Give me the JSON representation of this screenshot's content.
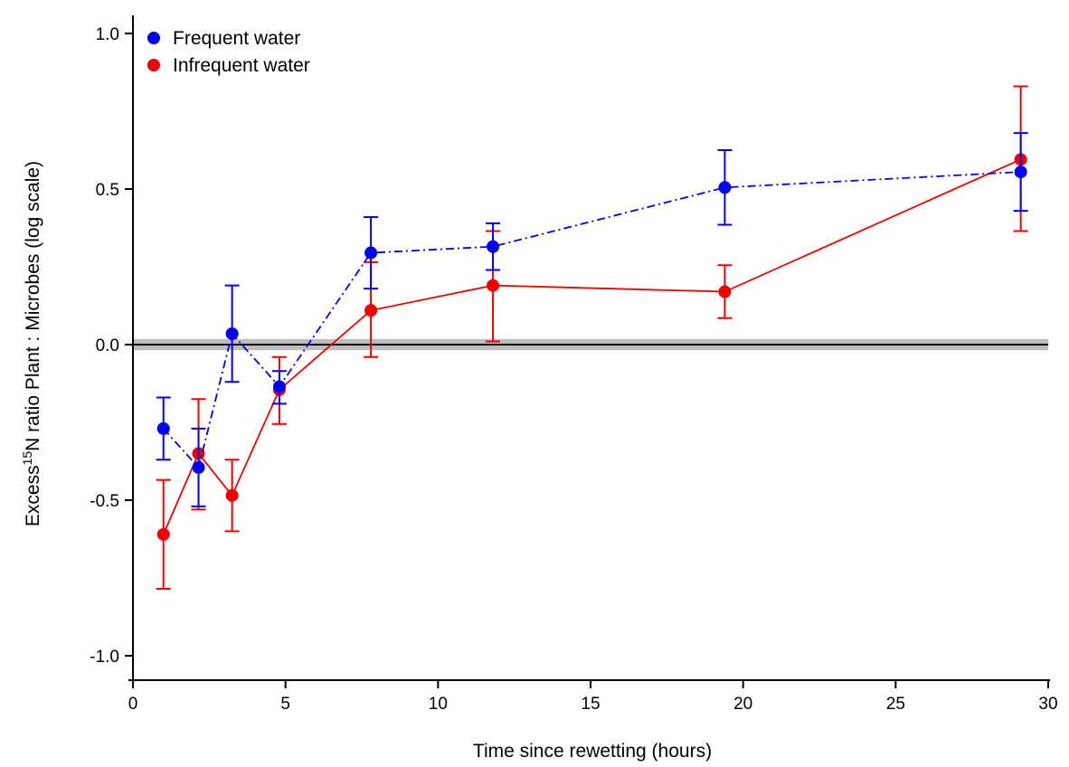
{
  "chart_data": {
    "type": "line",
    "xlabel": "Time since rewetting (hours)",
    "ylabel_parts": {
      "before": "Excess",
      "superscript": "15",
      "after": "N ratio Plant : Microbes (log scale)"
    },
    "xlim": [
      0,
      30
    ],
    "ylim": [
      -1.0,
      1.0
    ],
    "x_ticks": [
      0,
      5,
      10,
      15,
      20,
      25,
      30
    ],
    "y_ticks": [
      -1.0,
      -0.5,
      0.0,
      0.5,
      1.0
    ],
    "x_tick_labels": [
      "0",
      "5",
      "10",
      "15",
      "20",
      "25",
      "30"
    ],
    "y_tick_labels": [
      "-1.0",
      "-0.5",
      "0.0",
      "0.5",
      "1.0"
    ],
    "grid": false,
    "legend_position": "top-left",
    "reference_line": {
      "y": 0.0,
      "band": [
        -0.018,
        0.018
      ],
      "color": "#000000",
      "band_color": "#bdbdbd"
    },
    "series": [
      {
        "name": "Frequent water",
        "color": "#0000ee",
        "line_style": "dash-dot",
        "x": [
          1.0,
          2.15,
          3.25,
          4.8,
          7.8,
          11.8,
          19.4,
          29.1
        ],
        "y": [
          -0.27,
          -0.395,
          0.035,
          -0.135,
          0.295,
          0.315,
          0.505,
          0.555
        ],
        "err_low": [
          -0.37,
          -0.52,
          -0.12,
          -0.19,
          0.18,
          0.24,
          0.385,
          0.43
        ],
        "err_high": [
          -0.17,
          -0.27,
          0.19,
          -0.085,
          0.41,
          0.39,
          0.625,
          0.68
        ]
      },
      {
        "name": "Infrequent water",
        "color": "#ee0000",
        "line_style": "solid",
        "x": [
          1.0,
          2.15,
          3.25,
          4.8,
          7.8,
          11.8,
          19.4,
          29.1
        ],
        "y": [
          -0.61,
          -0.35,
          -0.485,
          -0.145,
          0.11,
          0.19,
          0.17,
          0.595
        ],
        "err_low": [
          -0.785,
          -0.53,
          -0.6,
          -0.255,
          -0.04,
          0.01,
          0.085,
          0.365
        ],
        "err_high": [
          -0.435,
          -0.175,
          -0.37,
          -0.04,
          0.265,
          0.365,
          0.255,
          0.83
        ]
      }
    ]
  }
}
